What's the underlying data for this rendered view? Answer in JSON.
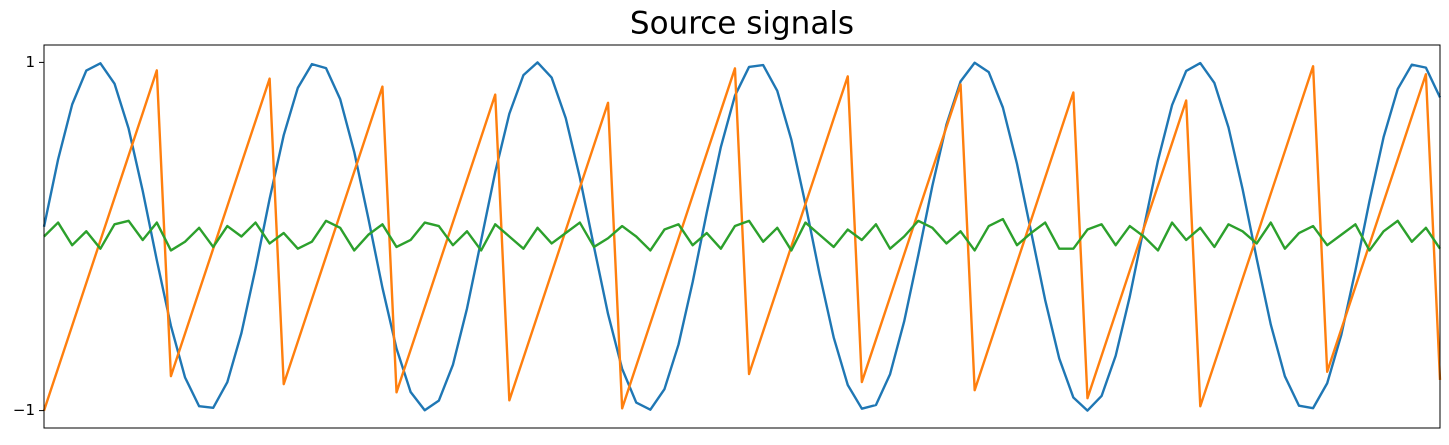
{
  "chart_data": {
    "type": "line",
    "title": "Source signals",
    "ylim": [
      -1.1,
      1.1
    ],
    "yticks": [
      {
        "value": -1,
        "label": "−1"
      },
      1
    ],
    "series": [
      {
        "color": "#1f77b4",
        "values": [
          0.056,
          0.443,
          0.759,
          0.953,
          0.995,
          0.878,
          0.62,
          0.262,
          -0.136,
          -0.513,
          -0.809,
          -0.975,
          -0.984,
          -0.837,
          -0.555,
          -0.184,
          0.216,
          0.582,
          0.854,
          0.99,
          0.967,
          0.79,
          0.486,
          0.105,
          -0.294,
          -0.644,
          -0.893,
          -0.998,
          -0.943,
          -0.737,
          -0.413,
          -0.023,
          0.37,
          0.705,
          0.927,
          1.0,
          0.913,
          0.68,
          0.339,
          -0.058,
          -0.445,
          -0.76,
          -0.954,
          -0.995,
          -0.877,
          -0.62,
          -0.262,
          0.137,
          0.514,
          0.809,
          0.974,
          0.985,
          0.837,
          0.556,
          0.186,
          -0.215,
          -0.579,
          -0.853,
          -0.989,
          -0.968,
          -0.791,
          -0.488,
          -0.108,
          0.291,
          0.643,
          0.891,
          0.998,
          0.944,
          0.741,
          0.418,
          0.028,
          -0.365,
          -0.701,
          -0.925,
          -1.0,
          -0.916,
          -0.685,
          -0.345,
          0.051,
          0.437,
          0.755,
          0.951,
          0.996,
          0.882,
          0.627,
          0.272,
          -0.127,
          -0.506,
          -0.803,
          -0.972,
          -0.986,
          -0.843,
          -0.565,
          -0.196,
          0.204,
          0.571,
          0.847,
          0.987,
          0.97,
          0.799
        ]
      },
      {
        "color": "#ff7f0e",
        "values": [
          -1,
          -0.756,
          -0.512,
          -0.267,
          -0.023,
          0.221,
          0.465,
          0.709,
          0.954,
          -0.802,
          -0.558,
          -0.314,
          -0.07,
          0.174,
          0.419,
          0.663,
          0.907,
          -0.848,
          -0.604,
          -0.36,
          -0.116,
          0.128,
          0.372,
          0.617,
          0.861,
          -0.895,
          -0.651,
          -0.407,
          -0.162,
          0.082,
          0.326,
          0.57,
          0.815,
          -0.941,
          -0.697,
          -0.453,
          -0.209,
          0.036,
          0.28,
          0.524,
          0.768,
          -0.987,
          -0.743,
          -0.499,
          -0.255,
          -0.011,
          0.234,
          0.478,
          0.722,
          0.966,
          -0.79,
          -0.545,
          -0.301,
          -0.057,
          0.187,
          0.431,
          0.676,
          0.92,
          -0.836,
          -0.592,
          -0.348,
          -0.103,
          0.141,
          0.385,
          0.629,
          0.873,
          -0.883,
          -0.638,
          -0.394,
          -0.15,
          0.094,
          0.339,
          0.583,
          0.827,
          -0.929,
          -0.685,
          -0.441,
          -0.196,
          0.048,
          0.292,
          0.536,
          0.781,
          -0.975,
          -0.731,
          -0.487,
          -0.243,
          0.001,
          0.246,
          0.49,
          0.734,
          0.978,
          -0.777,
          -0.533,
          -0.289,
          -0.045,
          0.199,
          0.443,
          0.688,
          0.932,
          -0.824
        ]
      },
      {
        "color": "#2ca02c",
        "values": [
          0.0,
          0.08,
          -0.05,
          0.03,
          -0.07,
          0.07,
          0.09,
          -0.02,
          0.08,
          -0.08,
          -0.03,
          0.05,
          -0.06,
          0.06,
          0.0,
          0.08,
          -0.04,
          0.02,
          -0.07,
          -0.03,
          0.09,
          0.05,
          -0.08,
          0.01,
          0.07,
          -0.06,
          -0.02,
          0.08,
          0.06,
          -0.05,
          0.03,
          -0.08,
          0.07,
          0.0,
          -0.07,
          0.05,
          -0.04,
          0.02,
          0.08,
          -0.06,
          -0.01,
          0.06,
          0.0,
          -0.08,
          0.04,
          0.07,
          -0.05,
          0.02,
          -0.07,
          0.06,
          0.09,
          -0.03,
          0.05,
          -0.08,
          0.08,
          0.01,
          -0.06,
          0.04,
          -0.02,
          0.07,
          -0.07,
          0.0,
          0.09,
          0.05,
          -0.04,
          0.03,
          -0.08,
          0.06,
          0.1,
          -0.05,
          0.02,
          0.08,
          -0.07,
          -0.07,
          0.04,
          0.07,
          -0.05,
          0.06,
          0.0,
          -0.08,
          0.08,
          -0.02,
          0.05,
          -0.06,
          0.07,
          0.03,
          -0.04,
          0.08,
          -0.07,
          0.02,
          0.06,
          -0.05,
          0.01,
          0.07,
          -0.08,
          0.03,
          0.09,
          -0.03,
          0.05,
          -0.07
        ]
      }
    ]
  }
}
